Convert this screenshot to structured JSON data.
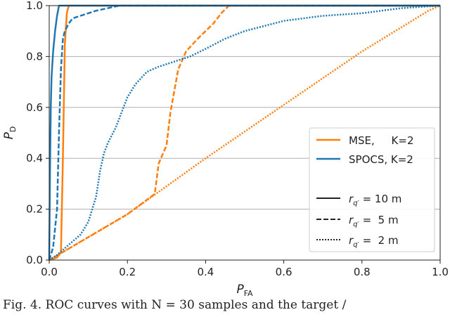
{
  "chart_data": {
    "type": "line",
    "xlabel_main": "P",
    "xlabel_sub": "FA",
    "ylabel_main": "P",
    "ylabel_sub": "D",
    "xlim": [
      0,
      1
    ],
    "ylim": [
      0,
      1
    ],
    "x_ticks": [
      "0.0",
      "0.2",
      "0.4",
      "0.6",
      "0.8",
      "1.0"
    ],
    "y_ticks": [
      "0.0",
      "0.2",
      "0.4",
      "0.6",
      "0.8",
      "1.0"
    ],
    "grid": "horizontal",
    "legend": {
      "placement": "center-right",
      "method_entries": [
        "MSE,     K=2",
        "SPOCS, K=2"
      ],
      "style_entries": [
        {
          "symbol": "r",
          "sub": "q′",
          "rest": " = 10 m"
        },
        {
          "symbol": "r",
          "sub": "q′",
          "rest": " =  5 m"
        },
        {
          "symbol": "r",
          "sub": "q′",
          "rest": " =  2 m"
        }
      ]
    },
    "colors": {
      "MSE": "#ff7f0e",
      "SPOCS": "#1f77b4"
    },
    "series": [
      {
        "name": "MSE, K=2, r=10 m",
        "method": "MSE",
        "style": "solid",
        "x": [
          0.0,
          0.02,
          0.03,
          0.035,
          0.04,
          0.045,
          0.05,
          1.0
        ],
        "y": [
          0.0,
          0.01,
          0.03,
          0.4,
          0.85,
          0.97,
          1.0,
          1.0
        ]
      },
      {
        "name": "MSE, K=2, r=5 m",
        "method": "MSE",
        "style": "dashed",
        "x": [
          0.0,
          0.1,
          0.2,
          0.27,
          0.28,
          0.3,
          0.31,
          0.33,
          0.35,
          0.38,
          0.42,
          0.44,
          0.46,
          1.0
        ],
        "y": [
          0.0,
          0.09,
          0.18,
          0.26,
          0.38,
          0.45,
          0.58,
          0.75,
          0.82,
          0.87,
          0.93,
          0.97,
          1.0,
          1.0
        ]
      },
      {
        "name": "MSE, K=2, r=2 m",
        "method": "MSE",
        "style": "dotted",
        "x": [
          0.0,
          0.2,
          0.4,
          0.6,
          0.8,
          0.97,
          1.0
        ],
        "y": [
          0.0,
          0.18,
          0.4,
          0.61,
          0.82,
          0.98,
          1.0
        ]
      },
      {
        "name": "SPOCS, K=2, r=10 m",
        "method": "SPOCS",
        "style": "solid",
        "x": [
          0.0,
          0.002,
          0.004,
          0.006,
          0.01,
          0.015,
          0.02,
          0.025,
          0.03,
          1.0
        ],
        "y": [
          0.0,
          0.35,
          0.6,
          0.72,
          0.82,
          0.9,
          0.96,
          1.0,
          1.0,
          1.0
        ]
      },
      {
        "name": "SPOCS, K=2, r=5 m",
        "method": "SPOCS",
        "style": "dashed",
        "x": [
          0.0,
          0.01,
          0.02,
          0.025,
          0.03,
          0.035,
          0.04,
          0.05,
          0.06,
          0.08,
          0.1,
          0.12,
          0.15,
          0.18,
          0.2,
          1.0
        ],
        "y": [
          0.0,
          0.05,
          0.2,
          0.5,
          0.75,
          0.87,
          0.9,
          0.93,
          0.95,
          0.96,
          0.97,
          0.98,
          0.99,
          1.0,
          1.0,
          1.0
        ]
      },
      {
        "name": "SPOCS, K=2, r=2 m",
        "method": "SPOCS",
        "style": "dotted",
        "x": [
          0.0,
          0.02,
          0.05,
          0.08,
          0.1,
          0.12,
          0.13,
          0.14,
          0.15,
          0.17,
          0.19,
          0.2,
          0.22,
          0.25,
          0.28,
          0.32,
          0.36,
          0.4,
          0.45,
          0.5,
          0.55,
          0.6,
          0.7,
          0.8,
          0.9,
          1.0
        ],
        "y": [
          0.0,
          0.02,
          0.06,
          0.1,
          0.15,
          0.25,
          0.35,
          0.42,
          0.46,
          0.52,
          0.6,
          0.64,
          0.69,
          0.74,
          0.76,
          0.78,
          0.8,
          0.83,
          0.87,
          0.9,
          0.92,
          0.94,
          0.96,
          0.97,
          0.99,
          1.0
        ]
      }
    ]
  },
  "caption": "Fig. 4. ROC curves with N = 30 samples and the target / "
}
